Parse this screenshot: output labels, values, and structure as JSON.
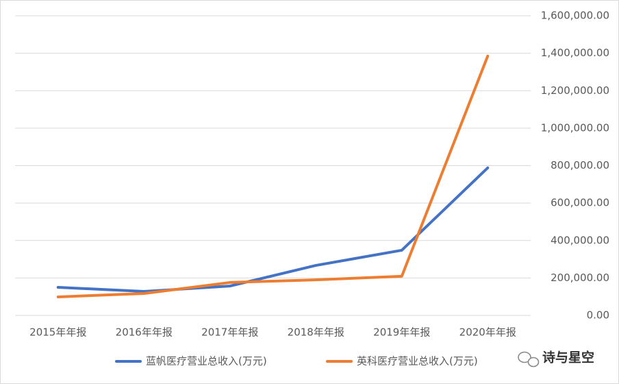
{
  "chart_data": {
    "type": "line",
    "categories": [
      "2015年年报",
      "2016年年报",
      "2017年年报",
      "2018年年报",
      "2019年年报",
      "2020年年报"
    ],
    "series": [
      {
        "name": "蓝帆医疗营业总收入(万元)",
        "color": "#4472c4",
        "values": [
          150000,
          128000,
          157000,
          267000,
          348000,
          788000
        ]
      },
      {
        "name": "英科医疗营业总收入(万元)",
        "color": "#ed7d31",
        "values": [
          99000,
          117000,
          176000,
          190000,
          209000,
          1385000
        ]
      }
    ],
    "ylim": [
      0,
      1600000
    ],
    "yticks": [
      {
        "value": 0,
        "label": "0.00"
      },
      {
        "value": 200000,
        "label": "200,000.00"
      },
      {
        "value": 400000,
        "label": "400,000.00"
      },
      {
        "value": 600000,
        "label": "600,000.00"
      },
      {
        "value": 800000,
        "label": "800,000.00"
      },
      {
        "value": 1000000,
        "label": "1,000,000.00"
      },
      {
        "value": 1200000,
        "label": "1,200,000.00"
      },
      {
        "value": 1400000,
        "label": "1,400,000.00"
      },
      {
        "value": 1600000,
        "label": "1,600,000.00"
      }
    ],
    "y_axis_side": "right",
    "grid": true,
    "legend": "bottom",
    "watermark": "诗与星空"
  }
}
